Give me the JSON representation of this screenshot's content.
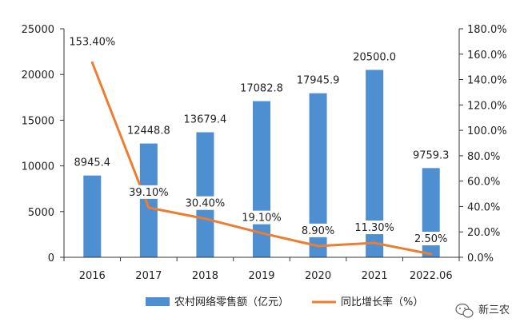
{
  "chart_data": {
    "type": "bar+line",
    "categories": [
      "2016",
      "2017",
      "2018",
      "2019",
      "2020",
      "2021",
      "2022.06"
    ],
    "series": [
      {
        "name": "农村网络零售额（亿元）",
        "type": "bar",
        "axis": "left",
        "color": "#4e8fd1",
        "values": [
          8945.4,
          12448.8,
          13679.4,
          17082.8,
          17945.9,
          20500.0,
          9759.3
        ],
        "labels": [
          "8945.4",
          "12448.8",
          "13679.4",
          "17082.8",
          "17945.9",
          "20500.0",
          "9759.3"
        ]
      },
      {
        "name": "同比增长率（%）",
        "type": "line",
        "axis": "right",
        "color": "#ed7d31",
        "values": [
          153.4,
          39.1,
          30.4,
          19.1,
          8.9,
          11.3,
          2.5
        ],
        "labels": [
          "153.40%",
          "39.10%",
          "30.40%",
          "19.10%",
          "8.90%",
          "11.30%",
          "2.50%"
        ]
      }
    ],
    "left_axis": {
      "ylim": [
        0,
        25000
      ],
      "ticks": [
        0,
        5000,
        10000,
        15000,
        20000,
        25000
      ],
      "tick_labels": [
        "0",
        "5000",
        "10000",
        "15000",
        "20000",
        "25000"
      ]
    },
    "right_axis": {
      "ylim": [
        0,
        180
      ],
      "ticks": [
        0,
        20,
        40,
        60,
        80,
        100,
        120,
        140,
        160,
        180
      ],
      "tick_labels": [
        "0.0%",
        "20.0%",
        "40.0%",
        "60.0%",
        "80.0%",
        "100.0%",
        "120.0%",
        "140.0%",
        "160.0%",
        "180.0%"
      ]
    },
    "grid": false,
    "legend_position": "bottom-center"
  },
  "watermark": {
    "text": "新三农",
    "icon": "wechat-icon"
  }
}
